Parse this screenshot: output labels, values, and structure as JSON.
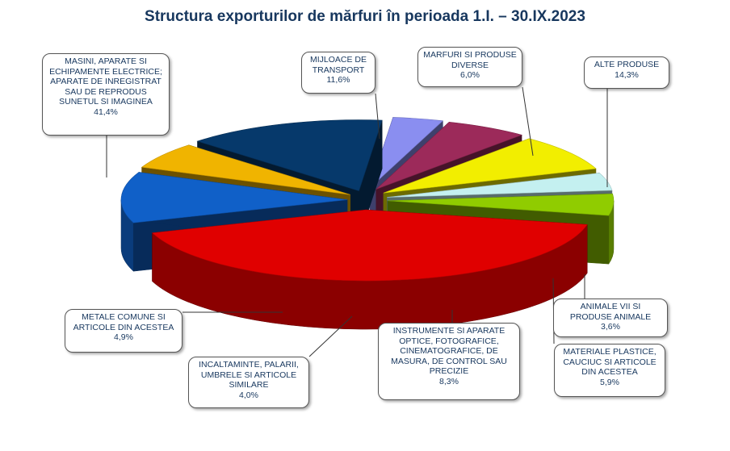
{
  "chart_data": {
    "type": "pie",
    "title": "Structura exporturilor de mărfuri în perioada 1.I. – 30.IX.2023",
    "slices": [
      {
        "label": "MASINI, APARATE SI ECHIPAMENTE ELECTRICE; APARATE DE INREGISTRAT SAU DE REPRODUS SUNETUL SI IMAGINEA",
        "value": 41.4,
        "display": "41,4%",
        "color": "#e00000"
      },
      {
        "label": "MIJLOACE DE TRANSPORT",
        "value": 11.6,
        "display": "11,6%",
        "color": "#1060c8"
      },
      {
        "label": "MARFURI SI PRODUSE DIVERSE",
        "value": 6.0,
        "display": "6,0%",
        "color": "#f0b400"
      },
      {
        "label": "ALTE PRODUSE",
        "value": 14.3,
        "display": "14,3%",
        "color": "#06396b"
      },
      {
        "label": "ANIMALE  VII SI PRODUSE ANIMALE",
        "value": 3.6,
        "display": "3,6%",
        "color": "#8a8ef0"
      },
      {
        "label": "MATERIALE PLASTICE, CAUCIUC SI ARTICOLE DIN ACESTEA",
        "value": 5.9,
        "display": "5,9%",
        "color": "#9c2a5a"
      },
      {
        "label": "INSTRUMENTE SI APARATE OPTICE, FOTOGRAFICE, CINEMATOGRAFICE, DE MASURA, DE CONTROL SAU PRECIZIE",
        "value": 8.3,
        "display": "8,3%",
        "color": "#f2ee00"
      },
      {
        "label": "INCALTAMINTE, PALARII, UMBRELE SI ARTICOLE SIMILARE",
        "value": 4.0,
        "display": "4,0%",
        "color": "#c4f0f0"
      },
      {
        "label": "METALE COMUNE SI ARTICOLE DIN ACESTEA",
        "value": 4.9,
        "display": "4,9%",
        "color": "#90cc00"
      }
    ]
  }
}
